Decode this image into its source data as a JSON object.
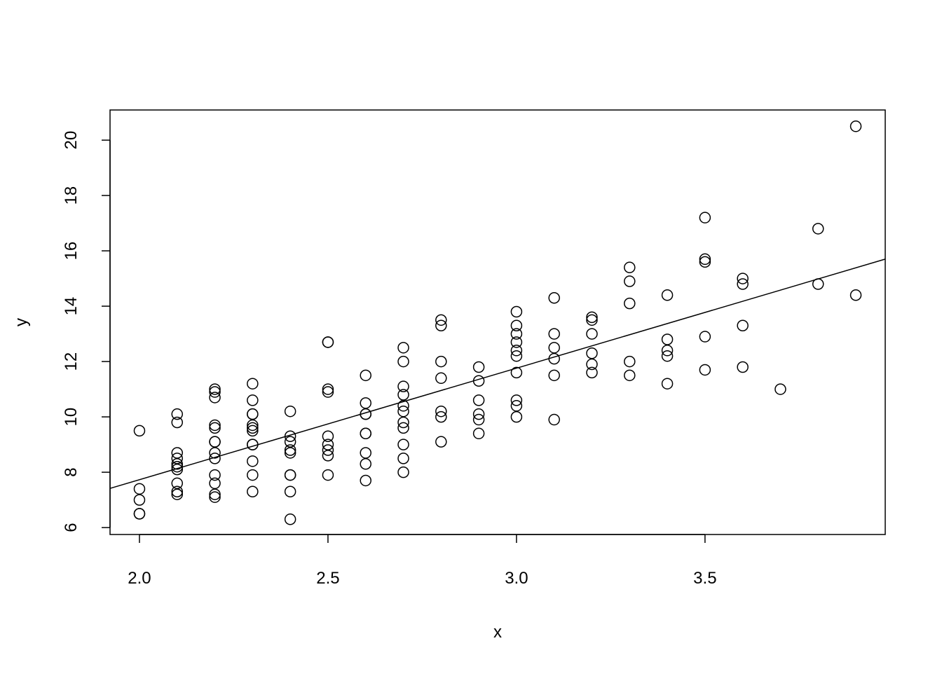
{
  "chart_data": {
    "type": "scatter",
    "title": "",
    "xlabel": "x",
    "ylabel": "y",
    "xlim": [
      1.922,
      3.978
    ],
    "ylim": [
      5.75,
      21.09
    ],
    "xticks": [
      "2.0",
      "2.5",
      "3.0",
      "3.5"
    ],
    "yticks": [
      "6",
      "8",
      "10",
      "12",
      "14",
      "16",
      "18",
      "20"
    ],
    "grid": false,
    "marker": "open-circle",
    "color": "#000000",
    "regression_line": {
      "intercept": -0.33,
      "slope": 4.03
    },
    "points": [
      [
        2.0,
        9.5
      ],
      [
        2.0,
        7.4
      ],
      [
        2.0,
        7.0
      ],
      [
        2.0,
        6.5
      ],
      [
        2.0,
        6.5
      ],
      [
        2.1,
        10.1
      ],
      [
        2.1,
        9.8
      ],
      [
        2.1,
        8.7
      ],
      [
        2.1,
        8.5
      ],
      [
        2.1,
        8.3
      ],
      [
        2.1,
        8.2
      ],
      [
        2.1,
        8.1
      ],
      [
        2.1,
        7.6
      ],
      [
        2.1,
        7.3
      ],
      [
        2.1,
        7.2
      ],
      [
        2.2,
        11.0
      ],
      [
        2.2,
        10.9
      ],
      [
        2.2,
        10.7
      ],
      [
        2.2,
        9.7
      ],
      [
        2.2,
        9.6
      ],
      [
        2.2,
        9.1
      ],
      [
        2.2,
        9.1
      ],
      [
        2.2,
        8.7
      ],
      [
        2.2,
        8.5
      ],
      [
        2.2,
        7.9
      ],
      [
        2.2,
        7.6
      ],
      [
        2.2,
        7.2
      ],
      [
        2.2,
        7.1
      ],
      [
        2.3,
        11.2
      ],
      [
        2.3,
        10.6
      ],
      [
        2.3,
        10.1
      ],
      [
        2.3,
        10.1
      ],
      [
        2.3,
        9.7
      ],
      [
        2.3,
        9.6
      ],
      [
        2.3,
        9.5
      ],
      [
        2.3,
        9.0
      ],
      [
        2.3,
        9.0
      ],
      [
        2.3,
        8.4
      ],
      [
        2.3,
        7.9
      ],
      [
        2.3,
        7.3
      ],
      [
        2.4,
        10.2
      ],
      [
        2.4,
        9.3
      ],
      [
        2.4,
        9.1
      ],
      [
        2.4,
        8.8
      ],
      [
        2.4,
        8.7
      ],
      [
        2.4,
        7.9
      ],
      [
        2.4,
        7.9
      ],
      [
        2.4,
        7.3
      ],
      [
        2.4,
        6.3
      ],
      [
        2.5,
        12.7
      ],
      [
        2.5,
        12.7
      ],
      [
        2.5,
        11.0
      ],
      [
        2.5,
        10.9
      ],
      [
        2.5,
        9.3
      ],
      [
        2.5,
        9.0
      ],
      [
        2.5,
        8.8
      ],
      [
        2.5,
        8.6
      ],
      [
        2.5,
        7.9
      ],
      [
        2.6,
        11.5
      ],
      [
        2.6,
        10.5
      ],
      [
        2.6,
        10.1
      ],
      [
        2.6,
        10.1
      ],
      [
        2.6,
        9.4
      ],
      [
        2.6,
        9.4
      ],
      [
        2.6,
        8.7
      ],
      [
        2.6,
        8.3
      ],
      [
        2.6,
        7.7
      ],
      [
        2.7,
        12.5
      ],
      [
        2.7,
        12.0
      ],
      [
        2.7,
        11.1
      ],
      [
        2.7,
        10.8
      ],
      [
        2.7,
        10.4
      ],
      [
        2.7,
        10.2
      ],
      [
        2.7,
        9.8
      ],
      [
        2.7,
        9.6
      ],
      [
        2.7,
        9.0
      ],
      [
        2.7,
        8.5
      ],
      [
        2.7,
        8.0
      ],
      [
        2.8,
        13.5
      ],
      [
        2.8,
        13.3
      ],
      [
        2.8,
        12.0
      ],
      [
        2.8,
        11.4
      ],
      [
        2.8,
        10.2
      ],
      [
        2.8,
        10.0
      ],
      [
        2.8,
        9.1
      ],
      [
        2.9,
        11.8
      ],
      [
        2.9,
        11.3
      ],
      [
        2.9,
        10.6
      ],
      [
        2.9,
        10.1
      ],
      [
        2.9,
        9.9
      ],
      [
        2.9,
        9.4
      ],
      [
        3.0,
        13.8
      ],
      [
        3.0,
        13.3
      ],
      [
        3.0,
        13.0
      ],
      [
        3.0,
        12.7
      ],
      [
        3.0,
        12.4
      ],
      [
        3.0,
        12.2
      ],
      [
        3.0,
        11.6
      ],
      [
        3.0,
        10.6
      ],
      [
        3.0,
        10.4
      ],
      [
        3.0,
        10.0
      ],
      [
        3.1,
        14.3
      ],
      [
        3.1,
        13.0
      ],
      [
        3.1,
        12.5
      ],
      [
        3.1,
        12.1
      ],
      [
        3.1,
        11.5
      ],
      [
        3.1,
        9.9
      ],
      [
        3.2,
        13.6
      ],
      [
        3.2,
        13.5
      ],
      [
        3.2,
        13.0
      ],
      [
        3.2,
        12.3
      ],
      [
        3.2,
        11.9
      ],
      [
        3.2,
        11.6
      ],
      [
        3.3,
        15.4
      ],
      [
        3.3,
        14.9
      ],
      [
        3.3,
        14.1
      ],
      [
        3.3,
        12.0
      ],
      [
        3.3,
        11.5
      ],
      [
        3.4,
        14.4
      ],
      [
        3.4,
        12.8
      ],
      [
        3.4,
        12.4
      ],
      [
        3.4,
        12.2
      ],
      [
        3.4,
        11.2
      ],
      [
        3.5,
        17.2
      ],
      [
        3.5,
        15.7
      ],
      [
        3.5,
        15.6
      ],
      [
        3.5,
        12.9
      ],
      [
        3.5,
        11.7
      ],
      [
        3.6,
        15.0
      ],
      [
        3.6,
        14.8
      ],
      [
        3.6,
        13.3
      ],
      [
        3.6,
        11.8
      ],
      [
        3.7,
        11.0
      ],
      [
        3.8,
        16.8
      ],
      [
        3.8,
        14.8
      ],
      [
        3.9,
        20.5
      ],
      [
        3.9,
        14.4
      ]
    ]
  }
}
